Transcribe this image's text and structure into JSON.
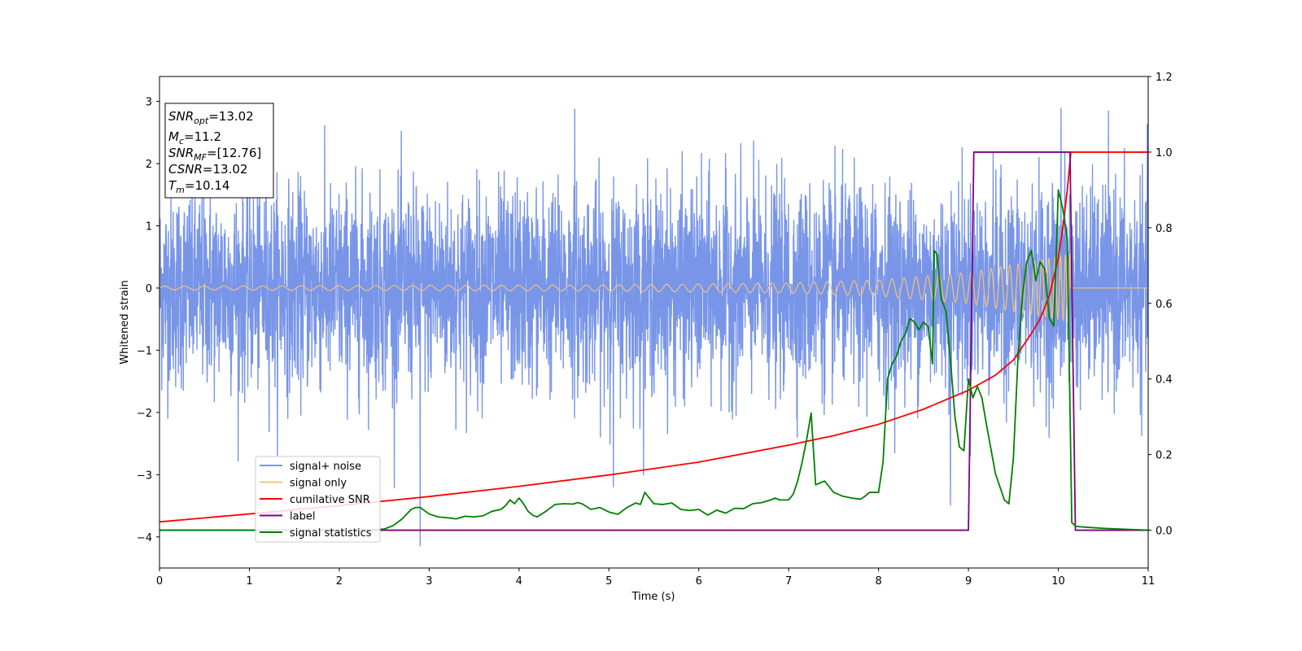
{
  "chart_data": {
    "type": "line",
    "xlabel": "Time (s)",
    "ylabel": "Whitened strain",
    "xlim": [
      0,
      11
    ],
    "ylim": [
      -4.5,
      3.4
    ],
    "y2lim": [
      -0.1,
      1.2
    ],
    "x_ticks": [
      "0",
      "1",
      "2",
      "3",
      "4",
      "5",
      "6",
      "7",
      "8",
      "9",
      "10",
      "11"
    ],
    "y_ticks": [
      "−4",
      "−3",
      "−2",
      "−1",
      "0",
      "1",
      "2",
      "3"
    ],
    "y2_ticks": [
      "0.0",
      "0.2",
      "0.4",
      "0.6",
      "0.8",
      "1.0",
      "1.2"
    ],
    "legend_position": "lower-left",
    "info_box": {
      "lines": [
        {
          "sym": "SNR",
          "sub": "opt",
          "val": "=13.02"
        },
        {
          "sym": "M",
          "sub": "c",
          "val": "=11.2"
        },
        {
          "sym": "SNR",
          "sub": "MF",
          "val": "=[12.76]"
        },
        {
          "sym": "CSNR",
          "sub": "",
          "val": "=13.02"
        },
        {
          "sym": "T",
          "sub": "m",
          "val": "=10.14"
        }
      ]
    },
    "series": [
      {
        "name": "signal+ noise",
        "axis": "left",
        "color": "#7895e8",
        "kind": "noise",
        "sigma": 0.8,
        "range": [
          -4.15,
          2.95
        ],
        "notable_spikes": [
          [
            2.9,
            -4.15
          ],
          [
            4.62,
            2.88
          ],
          [
            10.03,
            2.9
          ],
          [
            5.05,
            -3.2
          ],
          [
            8.8,
            -3.5
          ]
        ]
      },
      {
        "name": "signal only",
        "axis": "left",
        "color": "#f5c27a",
        "kind": "chirp",
        "envelope": [
          [
            0,
            0.03
          ],
          [
            5,
            0.05
          ],
          [
            7,
            0.08
          ],
          [
            8,
            0.13
          ],
          [
            9,
            0.25
          ],
          [
            9.5,
            0.38
          ],
          [
            10,
            0.5
          ],
          [
            10.14,
            0.55
          ]
        ],
        "end_time": 10.14
      },
      {
        "name": "cumilative SNR",
        "axis": "right",
        "color": "#ff0000",
        "x": [
          0,
          1,
          2,
          3,
          4,
          5,
          6,
          7,
          7.5,
          8,
          8.5,
          9,
          9.3,
          9.5,
          9.7,
          9.8,
          9.9,
          10,
          10.05,
          10.1,
          10.14,
          10.2,
          11
        ],
        "y": [
          0.022,
          0.043,
          0.065,
          0.089,
          0.116,
          0.146,
          0.18,
          0.225,
          0.25,
          0.28,
          0.32,
          0.37,
          0.41,
          0.45,
          0.52,
          0.56,
          0.62,
          0.72,
          0.8,
          0.9,
          1.0,
          1.0,
          1.0
        ]
      },
      {
        "name": "label",
        "axis": "right",
        "color": "#800080",
        "x": [
          0,
          9.0,
          9.06,
          10.13,
          10.19,
          11
        ],
        "y": [
          0,
          0,
          1,
          1,
          0,
          0
        ]
      },
      {
        "name": "signal statistics",
        "axis": "right",
        "color": "#008000",
        "x": [
          0,
          0.5,
          1,
          1.5,
          2,
          2.3,
          2.5,
          2.6,
          2.7,
          2.8,
          2.85,
          2.9,
          3.0,
          3.1,
          3.2,
          3.3,
          3.4,
          3.5,
          3.6,
          3.7,
          3.8,
          3.85,
          3.9,
          3.95,
          4.0,
          4.05,
          4.1,
          4.15,
          4.2,
          4.3,
          4.4,
          4.5,
          4.6,
          4.65,
          4.7,
          4.8,
          4.9,
          5.0,
          5.1,
          5.2,
          5.3,
          5.35,
          5.4,
          5.5,
          5.6,
          5.7,
          5.8,
          5.9,
          6.0,
          6.1,
          6.2,
          6.3,
          6.4,
          6.5,
          6.6,
          6.7,
          6.8,
          6.85,
          6.9,
          7.0,
          7.05,
          7.1,
          7.15,
          7.2,
          7.25,
          7.3,
          7.4,
          7.5,
          7.6,
          7.7,
          7.8,
          7.85,
          7.9,
          8.0,
          8.05,
          8.1,
          8.15,
          8.2,
          8.25,
          8.3,
          8.35,
          8.4,
          8.45,
          8.5,
          8.55,
          8.6,
          8.62,
          8.65,
          8.7,
          8.75,
          8.8,
          8.85,
          8.9,
          8.95,
          9.0,
          9.05,
          9.1,
          9.15,
          9.2,
          9.3,
          9.4,
          9.45,
          9.5,
          9.55,
          9.6,
          9.65,
          9.7,
          9.75,
          9.8,
          9.85,
          9.9,
          9.95,
          10.0,
          10.05,
          10.1,
          10.15,
          10.2,
          10.3,
          10.5,
          11
        ],
        "y": [
          0.0,
          0.0,
          0.0,
          0.0,
          0.0,
          0.001,
          0.003,
          0.012,
          0.03,
          0.055,
          0.06,
          0.06,
          0.043,
          0.035,
          0.033,
          0.03,
          0.037,
          0.035,
          0.038,
          0.05,
          0.055,
          0.065,
          0.08,
          0.07,
          0.085,
          0.07,
          0.05,
          0.04,
          0.035,
          0.05,
          0.068,
          0.07,
          0.069,
          0.073,
          0.07,
          0.055,
          0.06,
          0.048,
          0.042,
          0.06,
          0.072,
          0.068,
          0.1,
          0.07,
          0.068,
          0.072,
          0.055,
          0.052,
          0.055,
          0.04,
          0.053,
          0.045,
          0.058,
          0.057,
          0.07,
          0.073,
          0.08,
          0.085,
          0.08,
          0.08,
          0.095,
          0.13,
          0.18,
          0.24,
          0.31,
          0.12,
          0.13,
          0.1,
          0.09,
          0.085,
          0.082,
          0.09,
          0.1,
          0.1,
          0.18,
          0.4,
          0.44,
          0.46,
          0.5,
          0.52,
          0.56,
          0.55,
          0.53,
          0.55,
          0.54,
          0.44,
          0.74,
          0.73,
          0.61,
          0.58,
          0.45,
          0.3,
          0.22,
          0.21,
          0.4,
          0.35,
          0.38,
          0.35,
          0.28,
          0.15,
          0.08,
          0.07,
          0.19,
          0.45,
          0.62,
          0.71,
          0.74,
          0.66,
          0.71,
          0.69,
          0.56,
          0.54,
          0.9,
          0.85,
          0.77,
          0.02,
          0.01,
          0.008,
          0.005,
          0.0
        ]
      }
    ]
  }
}
